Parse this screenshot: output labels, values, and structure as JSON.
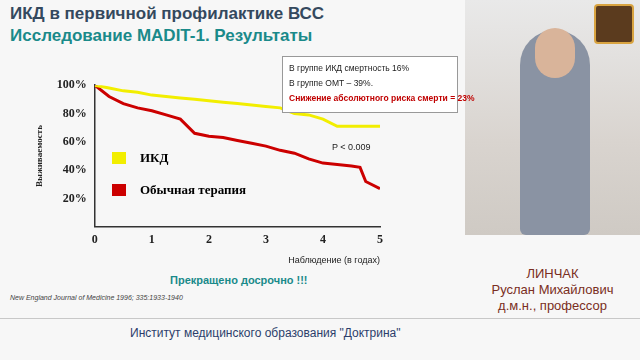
{
  "slide": {
    "title": "ИКД в первичной профилактике ВСС",
    "subtitle": "Исследование MADIT-1. Результаты",
    "note": "Прекращено досрочно !!!",
    "source": "New England Journal of Medicine 1996; 335:1933-1940",
    "footer": "Институт медицинского образования \"Доктрина\"",
    "speaker": [
      "ЛИНЧАК",
      "Руслан Михайлович",
      "д.м.н., профессор"
    ]
  },
  "chart_data": {
    "type": "line",
    "x_label": "Наблюдение (в годах)",
    "y_label": "Выживаемость",
    "x": [
      0,
      0.25,
      0.5,
      0.75,
      1,
      1.25,
      1.5,
      1.75,
      2,
      2.25,
      2.5,
      2.75,
      3,
      3.25,
      3.5,
      3.75,
      4,
      4.25,
      4.5,
      4.65,
      4.75,
      5
    ],
    "series": [
      {
        "name": "ИКД",
        "color": "#f2ee00",
        "values": [
          100,
          98,
          96,
          95,
          93,
          92,
          91,
          90,
          89,
          88,
          87,
          86,
          85,
          84,
          80,
          79,
          76,
          71,
          71,
          71,
          71,
          71
        ]
      },
      {
        "name": "Обычная терапия",
        "color": "#cc0000",
        "values": [
          100,
          92,
          87,
          84,
          82,
          79,
          76,
          66,
          64,
          63,
          61,
          59,
          57,
          54,
          52,
          48,
          45,
          44,
          43,
          42,
          32,
          27
        ]
      }
    ],
    "xlim": [
      0,
      5
    ],
    "xticks": [
      0,
      1,
      2,
      3,
      4,
      5
    ],
    "ylim": [
      0,
      100
    ],
    "yticks": [
      {
        "value": 20,
        "label": "20%"
      },
      {
        "value": 40,
        "label": "40%"
      },
      {
        "value": 60,
        "label": "60%"
      },
      {
        "value": 80,
        "label": "80%"
      },
      {
        "value": 100,
        "label": "100%"
      }
    ],
    "grid": false,
    "legend": "left",
    "annotations": {
      "box": [
        "В группе ИКД смертность 16%",
        "В группе ОМТ – 39%."
      ],
      "highlight": "Снижение абсолютного риска смерти = 23%",
      "p_value": "P < 0.009"
    }
  }
}
